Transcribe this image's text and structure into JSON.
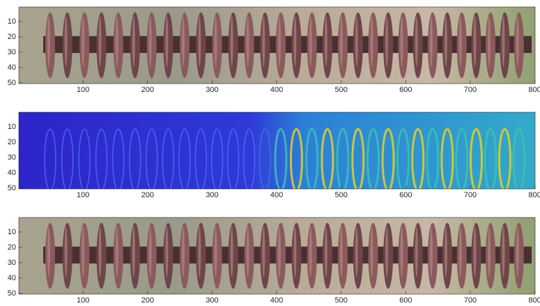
{
  "chart_data": [
    {
      "type": "image",
      "xlim": [
        0.5,
        800.5
      ],
      "ylim": [
        0.5,
        50.5
      ],
      "y_reversed": true,
      "xticks": [
        100,
        200,
        300,
        400,
        500,
        600,
        700,
        800
      ],
      "yticks": [
        10,
        20,
        30,
        40,
        50
      ]
    },
    {
      "type": "image",
      "xlim": [
        0.5,
        800.5
      ],
      "ylim": [
        0.5,
        50.5
      ],
      "y_reversed": true,
      "xticks": [
        100,
        200,
        300,
        400,
        500,
        600,
        700,
        800
      ],
      "yticks": [
        10,
        20,
        30,
        40,
        50
      ]
    },
    {
      "type": "image",
      "xlim": [
        0.5,
        800.5
      ],
      "ylim": [
        0.5,
        50.5
      ],
      "y_reversed": true,
      "xticks": [
        100,
        200,
        300,
        400,
        500,
        600,
        700,
        800
      ],
      "yticks": [
        10,
        20,
        30,
        40,
        50
      ]
    }
  ]
}
